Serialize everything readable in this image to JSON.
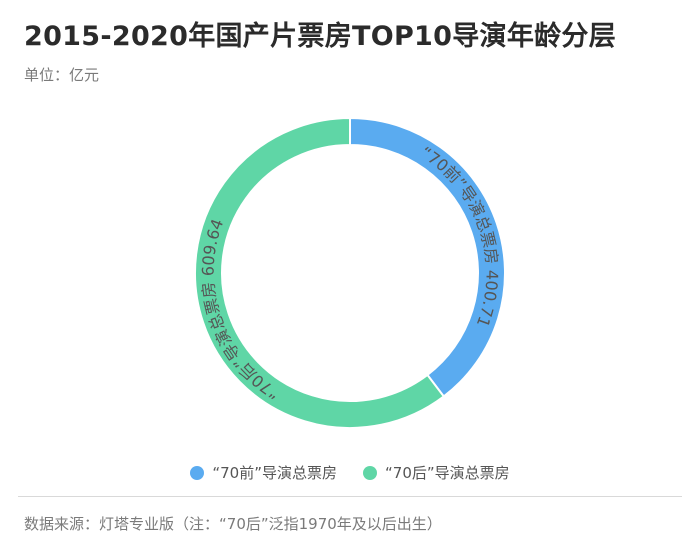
{
  "chart_data": {
    "type": "pie",
    "title": "2015-2020年国产片票房TOP10导演年龄分层",
    "subtitle": "单位：亿元",
    "donut": true,
    "series": [
      {
        "name": "“70前”导演总票房",
        "value": 400.71,
        "color": "#5aabf0",
        "label": "“70前”导演总票房 400.71"
      },
      {
        "name": "“70后”导演总票房",
        "value": 609.64,
        "color": "#5fd6a6",
        "label": "“70后”导演总票房 609.64"
      }
    ],
    "legend_position": "bottom"
  },
  "source": "数据来源：灯塔专业版（注：“70后”泛指1970年及以后出生）"
}
